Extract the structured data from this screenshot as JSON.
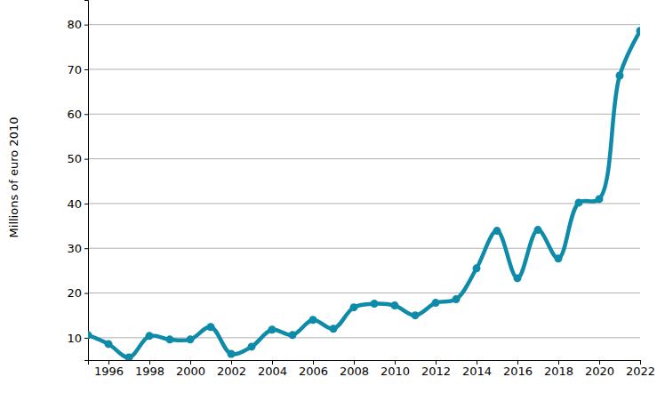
{
  "chart_data": {
    "type": "line",
    "y_label": "Millions of euro 2010",
    "x": [
      1995,
      1996,
      1997,
      1998,
      1999,
      2000,
      2001,
      2002,
      2003,
      2004,
      2005,
      2006,
      2007,
      2008,
      2009,
      2010,
      2011,
      2012,
      2013,
      2014,
      2015,
      2016,
      2017,
      2018,
      2019,
      2020,
      2021,
      2022
    ],
    "values": [
      10.6,
      8.6,
      5.6,
      10.4,
      9.6,
      9.6,
      12.4,
      6.4,
      8.0,
      11.8,
      10.6,
      14.0,
      12.0,
      16.8,
      17.6,
      17.2,
      15.0,
      17.8,
      18.6,
      25.5,
      33.9,
      23.3,
      34.1,
      27.7,
      40.2,
      41.0,
      68.6,
      78.6
    ],
    "color": "#0e8ba8",
    "marker": "circle",
    "line_style": "solid",
    "xlim": [
      1995,
      2022
    ],
    "xticks": [
      1996,
      1998,
      2000,
      2002,
      2004,
      2006,
      2008,
      2010,
      2012,
      2014,
      2016,
      2018,
      2020,
      2022
    ],
    "ylim": [
      5,
      85.5
    ],
    "yticks": [
      10,
      20,
      30,
      40,
      50,
      60,
      70,
      80
    ],
    "grid": true
  }
}
